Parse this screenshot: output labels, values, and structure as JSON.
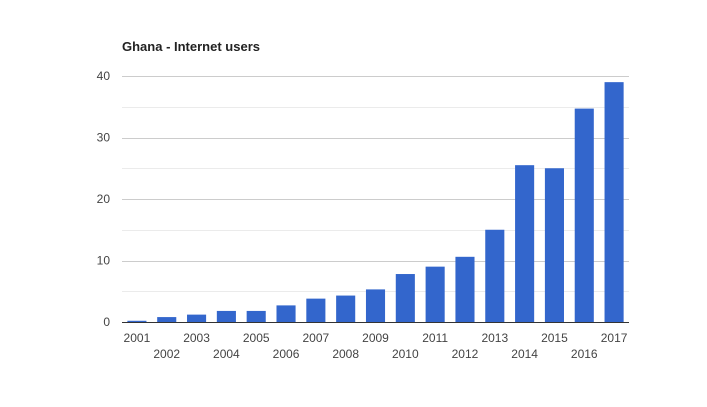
{
  "chart_data": {
    "type": "bar",
    "title": "Ghana - Internet users",
    "xlabel": "",
    "ylabel": "",
    "categories": [
      "2001",
      "2002",
      "2003",
      "2004",
      "2005",
      "2006",
      "2007",
      "2008",
      "2009",
      "2010",
      "2011",
      "2012",
      "2013",
      "2014",
      "2015",
      "2016",
      "2017"
    ],
    "values": [
      0.2,
      0.8,
      1.2,
      1.8,
      1.8,
      2.7,
      3.8,
      4.3,
      5.3,
      7.8,
      9.0,
      10.6,
      15.0,
      25.5,
      25.0,
      34.7,
      39.0
    ],
    "ylim": [
      0,
      40
    ],
    "yticks": [
      0,
      10,
      20,
      30,
      40
    ],
    "grid": true,
    "legend": "none",
    "bar_color": "#3366cc",
    "grid_color": "#cccccc",
    "minor_grid_color": "#ebebeb"
  }
}
